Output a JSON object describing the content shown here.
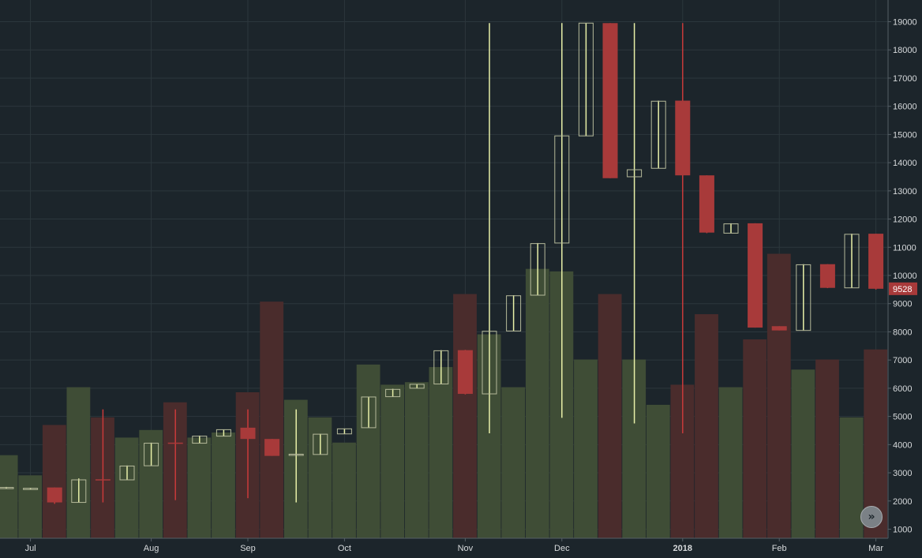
{
  "chart_data": {
    "type": "candlestick",
    "interval": "weekly",
    "ylim": [
      0,
      19500
    ],
    "y_ticks": [
      1000,
      2000,
      3000,
      4000,
      5000,
      6000,
      7000,
      8000,
      9000,
      10000,
      11000,
      12000,
      13000,
      14000,
      15000,
      16000,
      17000,
      18000,
      19000
    ],
    "x_labels": [
      {
        "label": "Jul",
        "week": 1
      },
      {
        "label": "Aug",
        "week": 6
      },
      {
        "label": "Sep",
        "week": 10
      },
      {
        "label": "Oct",
        "week": 14
      },
      {
        "label": "Nov",
        "week": 19
      },
      {
        "label": "Dec",
        "week": 23
      },
      {
        "label": "2018",
        "week": 28,
        "bold": true
      },
      {
        "label": "Feb",
        "week": 32
      },
      {
        "label": "Mar",
        "week": 36
      }
    ],
    "last_price": "9528",
    "colors": {
      "up": "#b5b99a",
      "down": "#a83a3a",
      "vol_up": "#3f4d36",
      "vol_down": "#4a2c2c",
      "grid": "#2c373d",
      "up_wick": "#e8f0a8",
      "down_wick": "#c93a3a"
    },
    "candles": [
      {
        "o": 2480,
        "h": 2500,
        "l": 2450,
        "c": 2480,
        "v": 1650
      },
      {
        "o": 2450,
        "h": 2470,
        "l": 2420,
        "c": 2450,
        "v": 1250
      },
      {
        "o": 2480,
        "h": 2480,
        "l": 1900,
        "c": 1950,
        "v": 2250
      },
      {
        "o": 1950,
        "h": 2800,
        "l": 1950,
        "c": 2750,
        "v": 3000
      },
      {
        "o": 2770,
        "h": 5250,
        "l": 1950,
        "c": 2760,
        "v": 2400
      },
      {
        "o": 2750,
        "h": 3260,
        "l": 2750,
        "c": 3240,
        "v": 2000
      },
      {
        "o": 3250,
        "h": 4070,
        "l": 3250,
        "c": 4050,
        "v": 2150
      },
      {
        "o": 4070,
        "h": 5250,
        "l": 2030,
        "c": 4060,
        "v": 2700
      },
      {
        "o": 4050,
        "h": 4320,
        "l": 4050,
        "c": 4300,
        "v": 2000
      },
      {
        "o": 4300,
        "h": 4540,
        "l": 4300,
        "c": 4530,
        "v": 2100
      },
      {
        "o": 4600,
        "h": 5250,
        "l": 2100,
        "c": 4200,
        "v": 2900
      },
      {
        "o": 4200,
        "h": 4200,
        "l": 3600,
        "c": 3600,
        "v": 4700
      },
      {
        "o": 3650,
        "h": 5250,
        "l": 1950,
        "c": 3660,
        "v": 2750
      },
      {
        "o": 3650,
        "h": 4380,
        "l": 3650,
        "c": 4370,
        "v": 2400
      },
      {
        "o": 4380,
        "h": 4570,
        "l": 4380,
        "c": 4560,
        "v": 1900
      },
      {
        "o": 4600,
        "h": 5700,
        "l": 4600,
        "c": 5690,
        "v": 3450
      },
      {
        "o": 5700,
        "h": 5980,
        "l": 5700,
        "c": 5960,
        "v": 3050
      },
      {
        "o": 6000,
        "h": 6150,
        "l": 6000,
        "c": 6140,
        "v": 3100
      },
      {
        "o": 6150,
        "h": 7350,
        "l": 6150,
        "c": 7330,
        "v": 3400
      },
      {
        "o": 7350,
        "h": 7360,
        "l": 5780,
        "c": 5800,
        "v": 4850
      },
      {
        "o": 5800,
        "h": 18950,
        "l": 4400,
        "c": 8020,
        "v": 4050
      },
      {
        "o": 8030,
        "h": 9300,
        "l": 8030,
        "c": 9280,
        "v": 3000
      },
      {
        "o": 9300,
        "h": 11150,
        "l": 9300,
        "c": 11130,
        "v": 5350
      },
      {
        "o": 11150,
        "h": 18950,
        "l": 4950,
        "c": 14950,
        "v": 5300
      },
      {
        "o": 14950,
        "h": 18950,
        "l": 14950,
        "c": 18950,
        "v": 3550
      },
      {
        "o": 18950,
        "h": 18950,
        "l": 13450,
        "c": 13450,
        "v": 4850
      },
      {
        "o": 13500,
        "h": 18950,
        "l": 4750,
        "c": 13750,
        "v": 3550
      },
      {
        "o": 13800,
        "h": 16200,
        "l": 13800,
        "c": 16180,
        "v": 2650
      },
      {
        "o": 16200,
        "h": 18950,
        "l": 4400,
        "c": 13550,
        "v": 3050
      },
      {
        "o": 13550,
        "h": 13550,
        "l": 11500,
        "c": 11520,
        "v": 4450
      },
      {
        "o": 11500,
        "h": 11850,
        "l": 11500,
        "c": 11830,
        "v": 3000
      },
      {
        "o": 11850,
        "h": 11850,
        "l": 8150,
        "c": 8150,
        "v": 3950
      },
      {
        "o": 8200,
        "h": 8200,
        "l": 8050,
        "c": 8050,
        "v": 5650
      },
      {
        "o": 8050,
        "h": 10400,
        "l": 8050,
        "c": 10380,
        "v": 3350
      },
      {
        "o": 10400,
        "h": 10400,
        "l": 9550,
        "c": 9560,
        "v": 3550
      },
      {
        "o": 9560,
        "h": 11480,
        "l": 9560,
        "c": 11460,
        "v": 2400
      },
      {
        "o": 11480,
        "h": 11480,
        "l": 9500,
        "c": 9528,
        "v": 3750
      }
    ]
  },
  "controls": {
    "scroll_button_label": "»"
  }
}
